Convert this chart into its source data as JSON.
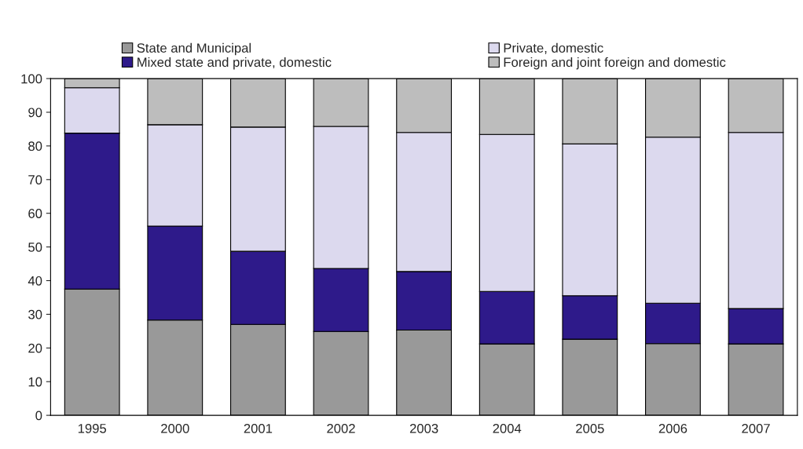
{
  "chart_data": {
    "type": "bar",
    "stacked": true,
    "categories": [
      "1995",
      "2000",
      "2001",
      "2002",
      "2003",
      "2004",
      "2005",
      "2006",
      "2007"
    ],
    "series": [
      {
        "name": "State and Municipal",
        "color": "#999999",
        "values": [
          37.5,
          28.3,
          27.0,
          24.9,
          25.3,
          21.2,
          22.6,
          21.3,
          21.2
        ]
      },
      {
        "name": "Mixed state and private, domestic",
        "color": "#2e1a8a",
        "values": [
          46.3,
          27.9,
          21.7,
          18.7,
          17.4,
          15.6,
          12.9,
          12.0,
          10.5
        ]
      },
      {
        "name": "Private, domestic",
        "color": "#dcd9ee",
        "values": [
          13.5,
          30.1,
          36.9,
          42.2,
          41.3,
          46.6,
          45.1,
          49.3,
          52.3
        ]
      },
      {
        "name": "Foreign and joint foreign and domestic",
        "color": "#bdbdbd",
        "values": [
          2.7,
          13.7,
          14.4,
          14.2,
          16.0,
          16.6,
          19.4,
          17.4,
          16.0
        ]
      }
    ],
    "ylim": [
      0,
      100
    ],
    "yticks": [
      0,
      10,
      20,
      30,
      40,
      50,
      60,
      70,
      80,
      90,
      100
    ],
    "grid": false,
    "legend": "top"
  }
}
